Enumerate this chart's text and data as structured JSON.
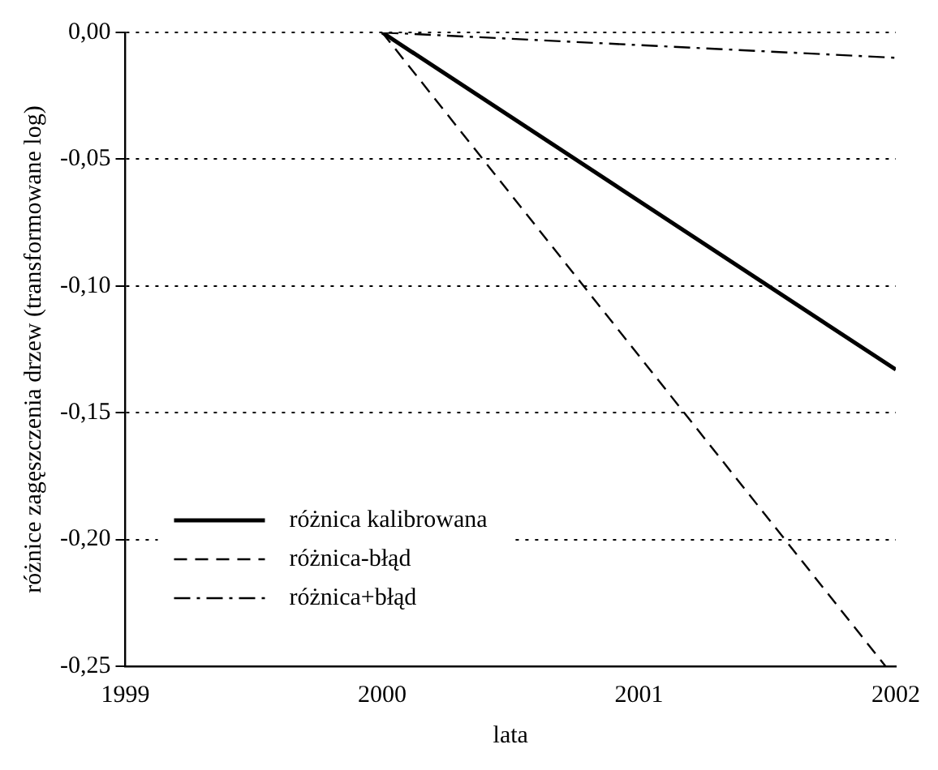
{
  "chart_data": {
    "type": "line",
    "xlabel": "lata",
    "ylabel": "różnice zagęszczenia drzew (transformowane log)",
    "xlim": [
      1999,
      2002
    ],
    "xticks": [
      1999,
      2000,
      2001,
      2002
    ],
    "ylim": [
      -0.25,
      0
    ],
    "yticks": [
      {
        "value": 0,
        "label": "0,00"
      },
      {
        "value": -0.05,
        "label": "-0,05"
      },
      {
        "value": -0.1,
        "label": "-0,10"
      },
      {
        "value": -0.15,
        "label": "-0,15"
      },
      {
        "value": -0.2,
        "label": "-0,20"
      },
      {
        "value": -0.25,
        "label": "-0,25"
      }
    ],
    "grid": "y",
    "legend": "bottom left",
    "marker": "none",
    "series": [
      {
        "name": "różnica kalibrowana",
        "color": "#000000",
        "line_style": "solid",
        "x": [
          2000,
          2002
        ],
        "values": [
          0,
          -0.133
        ]
      },
      {
        "name": "różnica-błąd",
        "color": "#000000",
        "line_style": "dashed",
        "x": [
          2000,
          2001.96
        ],
        "values": [
          0,
          -0.25
        ]
      },
      {
        "name": "różnica+błąd",
        "color": "#000000",
        "line_style": "dashdot",
        "x": [
          2000,
          2002
        ],
        "values": [
          0,
          -0.01
        ]
      }
    ]
  }
}
